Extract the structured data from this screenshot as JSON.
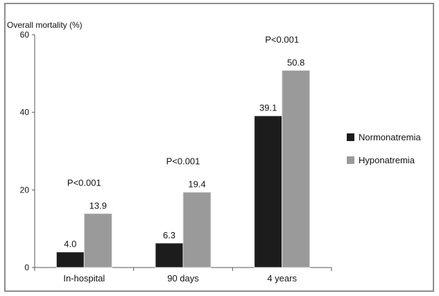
{
  "chart_data": {
    "type": "bar",
    "ylabel": "Overall mortality (%)",
    "ylim": [
      0,
      60
    ],
    "yticks": [
      0,
      20,
      40,
      60
    ],
    "categories": [
      "In-hospital",
      "90 days",
      "4 years"
    ],
    "series": [
      {
        "name": "Normonatremia",
        "values": [
          4.0,
          6.3,
          39.1
        ],
        "color": "#1c1c1c"
      },
      {
        "name": "Hyponatremia",
        "values": [
          13.9,
          19.4,
          50.8
        ],
        "color": "#9a9a9a"
      }
    ],
    "data_labels": [
      [
        "4.0",
        "6.3",
        "39.1"
      ],
      [
        "13.9",
        "19.4",
        "50.8"
      ]
    ],
    "annotations": [
      "P<0.001",
      "P<0.001",
      "P<0.001"
    ],
    "legend_position": "right",
    "grid": false
  }
}
